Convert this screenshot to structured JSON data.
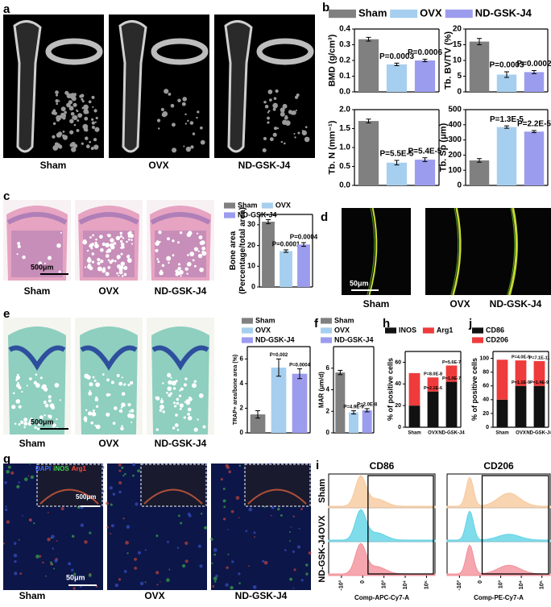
{
  "panel_labels": [
    "a",
    "b",
    "c",
    "d",
    "e",
    "f",
    "g",
    "h",
    "i",
    "j"
  ],
  "image_labels": {
    "a": [
      "Sham",
      "OVX",
      "ND-GSK-J4"
    ],
    "c": [
      "Sham",
      "OVX",
      "ND-GSK-J4"
    ],
    "d": [
      "Sham",
      "OVX",
      "ND-GSK-J4"
    ],
    "e": [
      "Sham",
      "OVX",
      "ND-GSK-J4"
    ],
    "g": [
      "Sham",
      "OVX",
      "ND-GSK-J4"
    ]
  },
  "scale_bars": {
    "c": "500μm",
    "d": "50μm",
    "e": "500μm",
    "g_inset": "500μm",
    "g": "50μm"
  },
  "g_stains": [
    "DAPI",
    "iNOS",
    "Arg1"
  ],
  "flow": {
    "titles": [
      "CD86",
      "CD206"
    ],
    "rows": [
      "Sham",
      "OVX",
      "ND-GSK-J4"
    ],
    "xlabels": [
      "Comp-APC-Cy7-A",
      "Comp-PE-Cy7-A"
    ],
    "xticks": [
      "-10³",
      "0",
      "10³",
      "10⁴",
      "10⁵"
    ]
  },
  "chart_data": [
    {
      "type": "bar",
      "ylabel": "BMD (g/cm³)",
      "categories": [
        "Sham",
        "OVX",
        "ND-GSK-J4"
      ],
      "colors": [
        "#808080",
        "#a6cfef",
        "#9c9cee"
      ],
      "values": [
        0.335,
        0.175,
        0.2
      ],
      "errors": [
        0.012,
        0.008,
        0.008
      ],
      "ylim": [
        0,
        0.4
      ],
      "yticks": [
        {
          "value": 0,
          "label": "0.0"
        },
        0.1,
        0.2,
        0.3,
        0.4
      ],
      "annotations": [
        "P=0.0003",
        "P=0.0006"
      ],
      "legend": "top"
    },
    {
      "type": "bar",
      "ylabel": "Tb. BV/TV (%)",
      "categories": [
        "Sham",
        "OVX",
        "ND-GSK-J4"
      ],
      "colors": [
        "#808080",
        "#a6cfef",
        "#9c9cee"
      ],
      "values": [
        16,
        5.5,
        6.3
      ],
      "errors": [
        1,
        0.9,
        0.5
      ],
      "ylim": [
        0,
        20
      ],
      "yticks": [
        0,
        5,
        10,
        15,
        20
      ],
      "annotations": [
        "P=0.0003",
        "P=0.0002"
      ]
    },
    {
      "type": "bar",
      "ylabel": "Tb. N (mm⁻¹)",
      "categories": [
        "Sham",
        "OVX",
        "ND-GSK-J4"
      ],
      "colors": [
        "#808080",
        "#a6cfef",
        "#9c9cee"
      ],
      "values": [
        1.7,
        0.6,
        0.68
      ],
      "errors": [
        0.05,
        0.06,
        0.05
      ],
      "ylim": [
        0,
        2
      ],
      "yticks": [
        {
          "value": 0,
          "label": "0.0"
        },
        0.5,
        {
          "value": 1,
          "label": "1.0"
        },
        1.5,
        {
          "value": 2,
          "label": "2.0"
        }
      ],
      "annotations": [
        "P=5.5E-5",
        "P=5.4E-5"
      ]
    },
    {
      "type": "bar",
      "ylabel": "Tb. Sp (μm)",
      "categories": [
        "Sham",
        "OVX",
        "ND-GSK-J4"
      ],
      "colors": [
        "#808080",
        "#a6cfef",
        "#9c9cee"
      ],
      "values": [
        165,
        385,
        355
      ],
      "errors": [
        12,
        8,
        7
      ],
      "ylim": [
        0,
        500
      ],
      "yticks": [
        0,
        100,
        200,
        300,
        400,
        500
      ],
      "annotations": [
        "P=1.3E-5",
        "P=2.2E-5"
      ]
    },
    {
      "type": "bar",
      "ylabel": [
        "Bone area",
        "(Percentage/total area)"
      ],
      "categories": [
        "Sham",
        "OVX",
        "ND-GSK-J4"
      ],
      "colors": [
        "#808080",
        "#a6cfef",
        "#9c9cee"
      ],
      "values": [
        31.5,
        17.3,
        20.5
      ],
      "errors": [
        1,
        0.6,
        0.9
      ],
      "ylim": [
        0,
        35
      ],
      "yticks": [
        0,
        10,
        20,
        30
      ],
      "annotations": [
        "P=0.0001",
        "P=0.0004"
      ],
      "legend": "top"
    },
    {
      "type": "bar",
      "ylabel": "TRAP+ area/bone area (%)",
      "categories": [
        "Sham",
        "OVX",
        "ND-GSK-J4"
      ],
      "colors": [
        "#808080",
        "#a6cfef",
        "#9c9cee"
      ],
      "values": [
        1.5,
        5.3,
        4.8
      ],
      "errors": [
        0.3,
        0.7,
        0.4
      ],
      "ylim": [
        0,
        7
      ],
      "yticks": [
        0,
        2,
        4,
        6
      ],
      "annotations": [
        "P=0.002",
        "P=0.0004"
      ],
      "legend": "top"
    },
    {
      "type": "bar",
      "ylabel": "MAR (μm/d)",
      "categories": [
        "Sham",
        "OVX",
        "ND-GSK-J4"
      ],
      "colors": [
        "#808080",
        "#a6cfef",
        "#9c9cee"
      ],
      "values": [
        5.6,
        1.9,
        2.1
      ],
      "errors": [
        0.2,
        0.15,
        0.15
      ],
      "ylim": [
        0,
        8
      ],
      "yticks": [
        0,
        2,
        4,
        6
      ],
      "annotations": [
        "P=4.9E-9",
        "P=2.0E-8"
      ],
      "legend": "top"
    },
    {
      "type": "stacked-bar",
      "ylabel": "% of positive cells",
      "categories": [
        "Sham",
        "OVX",
        "ND-GSK-J4"
      ],
      "series": [
        {
          "name": "INOS",
          "color": "#111111",
          "values": [
            20,
            33,
            42
          ]
        },
        {
          "name": "Arg1",
          "color": "#ee3b3b",
          "values": [
            30,
            13,
            15
          ]
        }
      ],
      "ylim": [
        0,
        70
      ],
      "yticks": [
        0,
        20,
        40,
        60
      ],
      "annotations": [
        "P=8.0E-8",
        "P=2.1E-6",
        "P=5.6E-7",
        "P=1.0E-7"
      ],
      "legend": "top"
    },
    {
      "type": "stacked-bar",
      "ylabel": "% of positive cells",
      "categories": [
        "Sham",
        "OVX",
        "ND-GSK-J4"
      ],
      "series": [
        {
          "name": "CD86",
          "color": "#111111",
          "values": [
            40,
            60,
            60
          ]
        },
        {
          "name": "CD206",
          "color": "#ee3b3b",
          "values": [
            58,
            37,
            36
          ]
        }
      ],
      "ylim": [
        0,
        110
      ],
      "yticks": [
        0,
        20,
        40,
        60,
        80,
        100
      ],
      "annotations": [
        "P=4.0E-9",
        "P=1.1E-9",
        "P=7.1E-11",
        "P=1.4E-9"
      ],
      "legend": "top"
    }
  ]
}
